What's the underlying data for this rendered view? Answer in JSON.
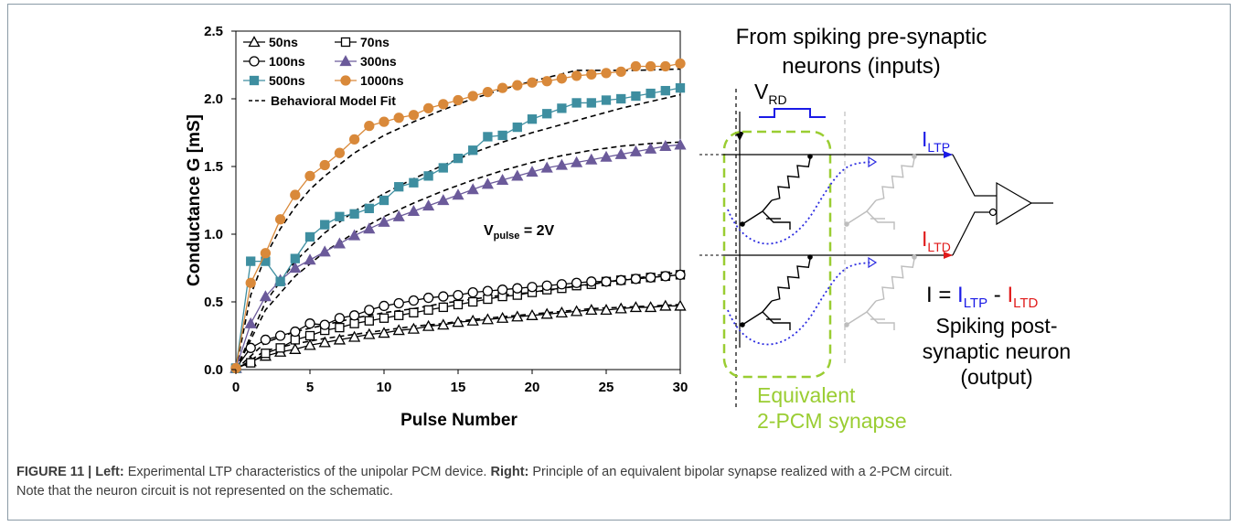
{
  "chart_data": {
    "type": "scatter",
    "xlabel": "Pulse Number",
    "ylabel": "Conductance G [mS]",
    "xlim": [
      0,
      30
    ],
    "ylim": [
      0,
      2.5
    ],
    "xticks": [
      "0",
      "5",
      "10",
      "15",
      "20",
      "25",
      "30"
    ],
    "yticks": [
      "0.0",
      "0.5",
      "1.0",
      "1.5",
      "2.0",
      "2.5"
    ],
    "annotation": {
      "main": "V",
      "sub": "pulse",
      "rest": " = 2V"
    },
    "legend_position": "top-left",
    "series": [
      {
        "name": "50ns",
        "marker": "triangle-open",
        "color": "#000000",
        "x": [
          0,
          1,
          2,
          3,
          4,
          5,
          6,
          7,
          8,
          9,
          10,
          11,
          12,
          13,
          14,
          15,
          16,
          17,
          18,
          19,
          20,
          21,
          22,
          23,
          24,
          25,
          26,
          27,
          28,
          29,
          30
        ],
        "y": [
          0.01,
          0.06,
          0.1,
          0.13,
          0.15,
          0.18,
          0.2,
          0.22,
          0.24,
          0.26,
          0.27,
          0.29,
          0.3,
          0.32,
          0.33,
          0.35,
          0.36,
          0.37,
          0.38,
          0.39,
          0.4,
          0.41,
          0.42,
          0.43,
          0.44,
          0.44,
          0.45,
          0.46,
          0.46,
          0.47,
          0.47
        ]
      },
      {
        "name": "70ns",
        "marker": "square-open",
        "color": "#000000",
        "x": [
          0,
          1,
          2,
          3,
          4,
          5,
          6,
          7,
          8,
          9,
          10,
          11,
          12,
          13,
          14,
          15,
          16,
          17,
          18,
          19,
          20,
          21,
          22,
          23,
          24,
          25,
          26,
          27,
          28,
          29,
          30
        ],
        "y": [
          0.01,
          0.05,
          0.12,
          0.16,
          0.22,
          0.25,
          0.29,
          0.31,
          0.34,
          0.36,
          0.38,
          0.4,
          0.42,
          0.44,
          0.46,
          0.48,
          0.5,
          0.52,
          0.54,
          0.55,
          0.57,
          0.59,
          0.6,
          0.62,
          0.63,
          0.65,
          0.66,
          0.67,
          0.68,
          0.69,
          0.7
        ]
      },
      {
        "name": "100ns",
        "marker": "circle-open",
        "color": "#000000",
        "x": [
          0,
          1,
          2,
          3,
          4,
          5,
          6,
          7,
          8,
          9,
          10,
          11,
          12,
          13,
          14,
          15,
          16,
          17,
          18,
          19,
          20,
          21,
          22,
          23,
          24,
          25,
          26,
          27,
          28,
          29,
          30
        ],
        "y": [
          0.01,
          0.16,
          0.22,
          0.25,
          0.28,
          0.34,
          0.33,
          0.38,
          0.4,
          0.44,
          0.47,
          0.49,
          0.51,
          0.53,
          0.54,
          0.55,
          0.57,
          0.58,
          0.59,
          0.6,
          0.61,
          0.62,
          0.63,
          0.64,
          0.65,
          0.65,
          0.66,
          0.67,
          0.68,
          0.69,
          0.7
        ]
      },
      {
        "name": "300ns",
        "marker": "triangle-filled",
        "color": "#6b5a9a",
        "x": [
          0,
          1,
          2,
          3,
          4,
          5,
          6,
          7,
          8,
          9,
          10,
          11,
          12,
          13,
          14,
          15,
          16,
          17,
          18,
          19,
          20,
          21,
          22,
          23,
          24,
          25,
          26,
          27,
          28,
          29,
          30
        ],
        "y": [
          0.01,
          0.34,
          0.54,
          0.66,
          0.75,
          0.81,
          0.87,
          0.93,
          0.99,
          1.04,
          1.09,
          1.13,
          1.17,
          1.21,
          1.25,
          1.29,
          1.33,
          1.37,
          1.4,
          1.43,
          1.46,
          1.49,
          1.51,
          1.53,
          1.55,
          1.57,
          1.59,
          1.61,
          1.63,
          1.65,
          1.66
        ]
      },
      {
        "name": "500ns",
        "marker": "square-filled",
        "color": "#3e8ea0",
        "x": [
          0,
          1,
          2,
          3,
          4,
          5,
          6,
          7,
          8,
          9,
          10,
          11,
          12,
          13,
          14,
          15,
          16,
          17,
          18,
          19,
          20,
          21,
          22,
          23,
          24,
          25,
          26,
          27,
          28,
          29,
          30
        ],
        "y": [
          0.01,
          0.8,
          0.8,
          0.65,
          0.82,
          0.98,
          1.07,
          1.13,
          1.15,
          1.19,
          1.25,
          1.35,
          1.38,
          1.43,
          1.49,
          1.56,
          1.62,
          1.72,
          1.73,
          1.79,
          1.85,
          1.89,
          1.93,
          1.97,
          1.97,
          1.99,
          2.0,
          2.02,
          2.04,
          2.06,
          2.08
        ]
      },
      {
        "name": "1000ns",
        "marker": "circle-filled",
        "color": "#d9893a",
        "x": [
          0,
          1,
          2,
          3,
          4,
          5,
          6,
          7,
          8,
          9,
          10,
          11,
          12,
          13,
          14,
          15,
          16,
          17,
          18,
          19,
          20,
          21,
          22,
          23,
          24,
          25,
          26,
          27,
          28,
          29,
          30
        ],
        "y": [
          0.01,
          0.64,
          0.86,
          1.11,
          1.29,
          1.43,
          1.51,
          1.6,
          1.7,
          1.8,
          1.83,
          1.86,
          1.88,
          1.93,
          1.96,
          1.99,
          2.02,
          2.05,
          2.08,
          2.1,
          2.12,
          2.13,
          2.15,
          2.17,
          2.18,
          2.19,
          2.2,
          2.24,
          2.24,
          2.24,
          2.26
        ]
      },
      {
        "name": "Behavioral Model Fit",
        "marker": "none",
        "line": "dashed",
        "color": "#000000",
        "curves": [
          {
            "x": [
              0,
              1,
              2,
              3,
              4,
              5,
              6,
              8,
              10,
              12,
              14,
              16,
              18,
              20,
              23,
              27,
              30
            ],
            "y": [
              0,
              0.55,
              0.84,
              1.04,
              1.2,
              1.33,
              1.43,
              1.6,
              1.73,
              1.83,
              1.92,
              2.0,
              2.07,
              2.13,
              2.21,
              2.21,
              2.22
            ]
          },
          {
            "x": [
              0,
              2,
              4,
              6,
              8,
              10,
              12,
              14,
              16,
              18,
              20,
              22,
              24,
              26,
              28,
              30
            ],
            "y": [
              0,
              0.5,
              0.8,
              1.01,
              1.17,
              1.3,
              1.41,
              1.51,
              1.6,
              1.68,
              1.75,
              1.81,
              1.87,
              1.93,
              1.98,
              2.03
            ]
          },
          {
            "x": [
              0,
              2,
              4,
              6,
              8,
              10,
              12,
              14,
              16,
              18,
              20,
              22,
              24,
              26,
              28,
              30
            ],
            "y": [
              0,
              0.44,
              0.69,
              0.87,
              1.01,
              1.13,
              1.23,
              1.32,
              1.4,
              1.47,
              1.53,
              1.58,
              1.62,
              1.65,
              1.67,
              1.68
            ]
          },
          {
            "x": [
              0,
              2,
              4,
              6,
              8,
              10,
              12,
              14,
              16,
              18,
              20,
              22,
              24,
              26,
              28,
              30
            ],
            "y": [
              0,
              0.2,
              0.28,
              0.33,
              0.38,
              0.42,
              0.45,
              0.49,
              0.52,
              0.55,
              0.57,
              0.6,
              0.63,
              0.66,
              0.69,
              0.72
            ]
          },
          {
            "x": [
              0,
              2,
              4,
              6,
              8,
              10,
              12,
              14,
              16,
              18,
              20,
              22,
              24,
              26,
              28,
              30
            ],
            "y": [
              0,
              0.14,
              0.19,
              0.23,
              0.26,
              0.29,
              0.32,
              0.34,
              0.37,
              0.39,
              0.41,
              0.43,
              0.45,
              0.46,
              0.47,
              0.48
            ]
          }
        ]
      }
    ]
  },
  "diagram": {
    "inputs_label": [
      "From spiking pre-synaptic",
      "neurons (inputs)"
    ],
    "vrd": {
      "main": "V",
      "sub": "RD"
    },
    "iltp": {
      "main": "I",
      "sub": "LTP"
    },
    "iltd": {
      "main": "I",
      "sub": "LTD"
    },
    "equation": {
      "lead": "I = ",
      "a_main": "I",
      "a_sub": "LTP",
      "minus": " - ",
      "b_main": "I",
      "b_sub": "LTD"
    },
    "neuron_label": [
      "Spiking post-",
      "synaptic neuron",
      "(output)"
    ],
    "synapse_label": [
      "Equivalent",
      "2-PCM synapse"
    ],
    "colors": {
      "ltp": "#1a1ae6",
      "ltd": "#e01a1a",
      "synapse_box": "#9acd32",
      "faded": "#bdbdbd"
    }
  },
  "caption": {
    "figure_label": "FIGURE 11 | ",
    "left_label": "Left:",
    "left_text": " Experimental LTP characteristics of the unipolar PCM device. ",
    "right_label": "Right:",
    "right_text": " Principle of an equivalent bipolar synapse realized with a 2-PCM circuit.",
    "line2": "Note that the neuron circuit is not represented on the schematic."
  }
}
